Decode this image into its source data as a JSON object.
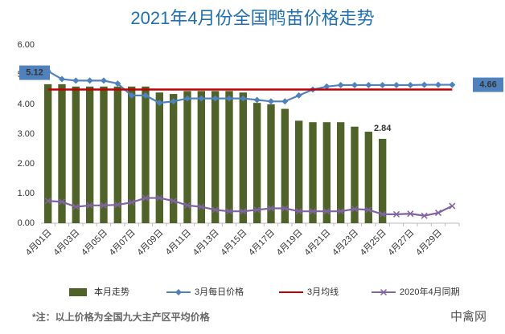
{
  "chart_data": {
    "type": "bar",
    "title": "2021年4月份全国鸭苗价格走势",
    "footnote": "*注：以上价格为全国九大主产区平均价格",
    "source": "中禽网",
    "categories": [
      "4月01日",
      null,
      "4月03日",
      null,
      "4月05日",
      null,
      "4月07日",
      null,
      "4月09日",
      null,
      "4月11日",
      null,
      "4月13日",
      null,
      "4月15日",
      null,
      "4月17日",
      null,
      "4月19日",
      null,
      "4月21日",
      null,
      "4月23日",
      null,
      "4月25日",
      null,
      "4月27日",
      null,
      "4月29日",
      null
    ],
    "series": [
      {
        "name": "本月走势",
        "type": "bar",
        "color": "#4f6228",
        "values": [
          4.68,
          4.68,
          4.6,
          4.6,
          4.6,
          4.6,
          4.6,
          4.6,
          4.4,
          4.35,
          4.45,
          4.45,
          4.45,
          4.45,
          4.4,
          4.05,
          4.0,
          3.85,
          3.45,
          3.4,
          3.4,
          3.4,
          3.25,
          3.08,
          2.84,
          null,
          null,
          null,
          null,
          null
        ]
      },
      {
        "name": "3月每日价格",
        "type": "line",
        "marker": "diamond",
        "color": "#4f81bd",
        "values": [
          5.12,
          4.85,
          4.8,
          4.8,
          4.8,
          4.7,
          4.3,
          4.3,
          4.05,
          4.1,
          4.2,
          4.2,
          4.2,
          4.2,
          4.2,
          4.15,
          4.1,
          4.1,
          4.3,
          4.5,
          4.6,
          4.65,
          4.65,
          4.65,
          4.65,
          4.65,
          4.65,
          4.66,
          4.66,
          4.66
        ]
      },
      {
        "name": "3月均线",
        "type": "line",
        "marker": "none",
        "color": "#c00000",
        "values": [
          4.5,
          4.5,
          4.5,
          4.5,
          4.5,
          4.5,
          4.5,
          4.5,
          4.5,
          4.5,
          4.5,
          4.5,
          4.5,
          4.5,
          4.5,
          4.5,
          4.5,
          4.5,
          4.5,
          4.5,
          4.5,
          4.5,
          4.5,
          4.5,
          4.5,
          4.5,
          4.5,
          4.5,
          4.5,
          4.5
        ]
      },
      {
        "name": "2020年4月同期",
        "type": "line",
        "marker": "x",
        "color": "#8064a2",
        "values": [
          0.75,
          0.72,
          0.55,
          0.6,
          0.6,
          0.62,
          0.7,
          0.85,
          0.85,
          0.75,
          0.6,
          0.55,
          0.45,
          0.4,
          0.4,
          0.45,
          0.5,
          0.5,
          0.4,
          0.4,
          0.4,
          0.4,
          0.48,
          0.45,
          0.3,
          0.3,
          0.32,
          0.25,
          0.35,
          0.58
        ]
      }
    ],
    "ylim": [
      0,
      6
    ],
    "yticks": [
      {
        "value": 0,
        "label": "0.00"
      },
      {
        "value": 1,
        "label": "1.00"
      },
      {
        "value": 2,
        "label": "2.00"
      },
      {
        "value": 3,
        "label": "3.00"
      },
      {
        "value": 4,
        "label": "4.00"
      },
      {
        "value": 5,
        "label": "5.00"
      },
      {
        "value": 6,
        "label": "6.00"
      }
    ],
    "grid": false,
    "legend": "bottom"
  }
}
